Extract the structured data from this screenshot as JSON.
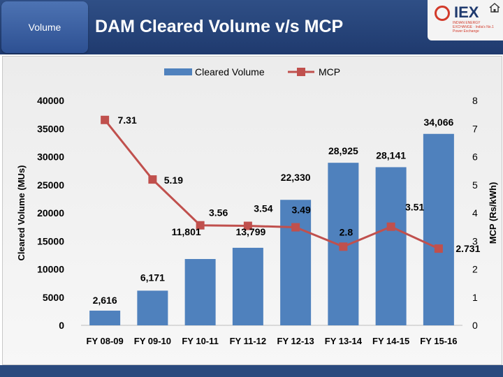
{
  "header": {
    "section_label": "Volume",
    "title": "DAM Cleared Volume v/s MCP",
    "logo_text": "IEX",
    "logo_subtext": "INDIAN ENERGY EXCHANGE · India's No.1 Power Exchange",
    "logo_icon": "iex-logo-icon",
    "home_icon": "home-icon"
  },
  "colors": {
    "header_bg": "#1f3a6e",
    "bar": "#4f81bd",
    "line": "#c0504d"
  },
  "chart_data": {
    "type": "bar+line",
    "title": "",
    "categories": [
      "FY 08-09",
      "FY 09-10",
      "FY 10-11",
      "FY 11-12",
      "FY 12-13",
      "FY 13-14",
      "FY 14-15",
      "FY 15-16"
    ],
    "series": [
      {
        "name": "Cleared Volume",
        "kind": "bar",
        "axis": "left",
        "values": [
          2616,
          6171,
          11801,
          13799,
          22330,
          28925,
          28141,
          34066
        ],
        "labels": [
          "2,616",
          "6,171",
          "11,801",
          "13,799",
          "22,330",
          "28,925",
          "28,141",
          "34,066"
        ]
      },
      {
        "name": "MCP",
        "kind": "line",
        "axis": "right",
        "values": [
          7.31,
          5.19,
          3.56,
          3.54,
          3.49,
          2.8,
          3.51,
          2.731
        ],
        "labels": [
          "7.31",
          "5.19",
          "3.56",
          "3.54",
          "3.49",
          "2.8",
          "3.51",
          "2.731"
        ]
      }
    ],
    "ylabel": "Cleared Volume (MUs)",
    "y2label": "MCP (Rs/kWh)",
    "ylim": [
      0,
      40000
    ],
    "y2lim": [
      0,
      8
    ],
    "yticks": [
      "0",
      "5000",
      "10000",
      "15000",
      "20000",
      "25000",
      "30000",
      "35000",
      "40000"
    ],
    "y2ticks": [
      "0",
      "1",
      "2",
      "3",
      "4",
      "5",
      "6",
      "7",
      "8"
    ],
    "legend": "top-center",
    "grid": false
  }
}
